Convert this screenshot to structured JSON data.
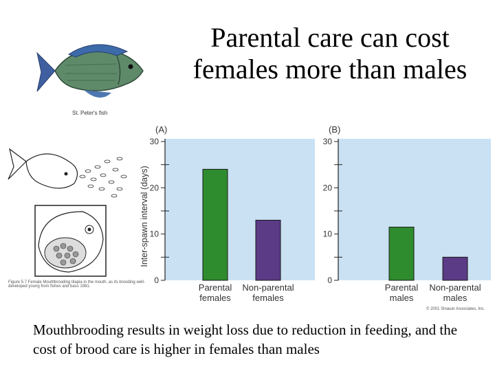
{
  "slide": {
    "title": "Parental care can cost females more than males",
    "caption": "Mouthbrooding results in weight loss due to reduction in feeding, and the cost of brood care is higher in females than males",
    "fish_label": "St. Peter's fish",
    "figure_note": "Figure 5.7  Female Mouthbrooding tilapia in the mouth, as its brooding well-developed young from fishes and bass 1981.",
    "copyright": "© 2001 Sinauer Associates, Inc."
  },
  "colors": {
    "green": "#2e8b2e",
    "purple": "#5b3a86",
    "panel_bg": "#c9e1f3"
  },
  "chart_data": [
    {
      "type": "bar",
      "panel_label": "(A)",
      "ylabel": "Inter-spawn interval (days)",
      "ylim": [
        0,
        30
      ],
      "yticks": [
        0,
        10,
        20,
        30
      ],
      "categories": [
        "Parental\nfemales",
        "Non-parental\nfemales"
      ],
      "values": [
        24,
        13
      ],
      "colors": [
        "#2e8b2e",
        "#5b3a86"
      ]
    },
    {
      "type": "bar",
      "panel_label": "(B)",
      "ylabel": "",
      "ylim": [
        0,
        30
      ],
      "yticks": [
        0,
        10,
        20,
        30
      ],
      "categories": [
        "Parental\nmales",
        "Non-parental\nmales"
      ],
      "values": [
        11.5,
        5
      ],
      "colors": [
        "#2e8b2e",
        "#5b3a86"
      ]
    }
  ]
}
